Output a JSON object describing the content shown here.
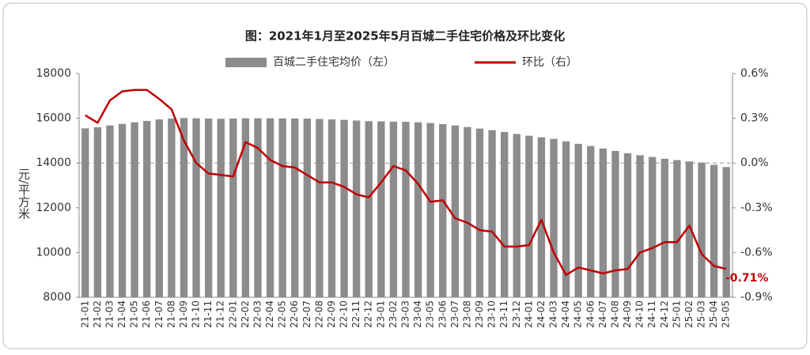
{
  "chart_data": {
    "type": "bar-line",
    "title": "图：2021年1月至2025年5月百城二手住宅价格及环比变化",
    "y_label": "元/平方米",
    "categories": [
      "21-01",
      "21-02",
      "21-03",
      "21-04",
      "21-05",
      "21-06",
      "21-07",
      "21-08",
      "21-09",
      "21-10",
      "21-11",
      "21-12",
      "22-01",
      "22-02",
      "22-03",
      "22-04",
      "22-05",
      "22-06",
      "22-07",
      "22-08",
      "22-09",
      "22-10",
      "22-11",
      "22-12",
      "23-01",
      "23-02",
      "23-03",
      "23-04",
      "23-05",
      "23-06",
      "23-07",
      "23-08",
      "23-09",
      "23-10",
      "23-11",
      "23-12",
      "24-01",
      "24-02",
      "24-03",
      "24-04",
      "24-05",
      "24-06",
      "24-07",
      "24-08",
      "24-09",
      "24-10",
      "24-11",
      "24-12",
      "25-01",
      "25-02",
      "25-03",
      "25-04",
      "25-05"
    ],
    "series": [
      {
        "name": "百城二手住宅均价（左）",
        "type": "bar",
        "color": "#8c8c8c",
        "values": [
          15550,
          15600,
          15680,
          15750,
          15820,
          15880,
          15950,
          15990,
          16010,
          16000,
          15990,
          15980,
          15990,
          16000,
          16000,
          16000,
          15995,
          15990,
          15985,
          15970,
          15950,
          15930,
          15900,
          15870,
          15860,
          15850,
          15840,
          15820,
          15790,
          15740,
          15680,
          15610,
          15540,
          15470,
          15390,
          15300,
          15220,
          15150,
          15080,
          14970,
          14860,
          14760,
          14650,
          14540,
          14440,
          14350,
          14270,
          14190,
          14130,
          14070,
          14020,
          13920,
          13820
        ]
      },
      {
        "name": "环比（右）",
        "type": "line",
        "axis": "y2",
        "color": "#c00000",
        "values": [
          0.32,
          0.27,
          0.42,
          0.48,
          0.49,
          0.49,
          0.43,
          0.36,
          0.15,
          0.0,
          -0.07,
          -0.08,
          -0.09,
          0.14,
          0.1,
          0.02,
          -0.02,
          -0.03,
          -0.08,
          -0.13,
          -0.13,
          -0.16,
          -0.21,
          -0.23,
          -0.13,
          -0.02,
          -0.05,
          -0.14,
          -0.26,
          -0.25,
          -0.37,
          -0.4,
          -0.45,
          -0.46,
          -0.56,
          -0.56,
          -0.55,
          -0.38,
          -0.6,
          -0.75,
          -0.7,
          -0.72,
          -0.74,
          -0.72,
          -0.71,
          -0.6,
          -0.57,
          -0.53,
          -0.53,
          -0.42,
          -0.61,
          -0.69,
          -0.71
        ],
        "value_labels": [
          null,
          null,
          null,
          null,
          null,
          null,
          null,
          null,
          null,
          null,
          null,
          null,
          null,
          null,
          null,
          null,
          null,
          null,
          null,
          null,
          null,
          null,
          null,
          null,
          null,
          null,
          null,
          null,
          null,
          null,
          null,
          null,
          null,
          null,
          null,
          null,
          null,
          null,
          null,
          null,
          null,
          null,
          null,
          null,
          null,
          null,
          null,
          null,
          null,
          null,
          null,
          null,
          "-0.71%"
        ]
      }
    ],
    "ylim": [
      8000,
      18000
    ],
    "yticks": [
      8000,
      10000,
      12000,
      14000,
      16000,
      18000
    ],
    "y2lim": [
      -0.9,
      0.6
    ],
    "y2ticks": [
      {
        "value": -0.9,
        "label": "-0.9%"
      },
      {
        "value": -0.6,
        "label": "-0.6%"
      },
      {
        "value": -0.3,
        "label": "-0.3%"
      },
      {
        "value": 0,
        "label": "0.0%"
      },
      {
        "value": 0.3,
        "label": "0.3%"
      },
      {
        "value": 0.6,
        "label": "0.6%"
      }
    ]
  }
}
